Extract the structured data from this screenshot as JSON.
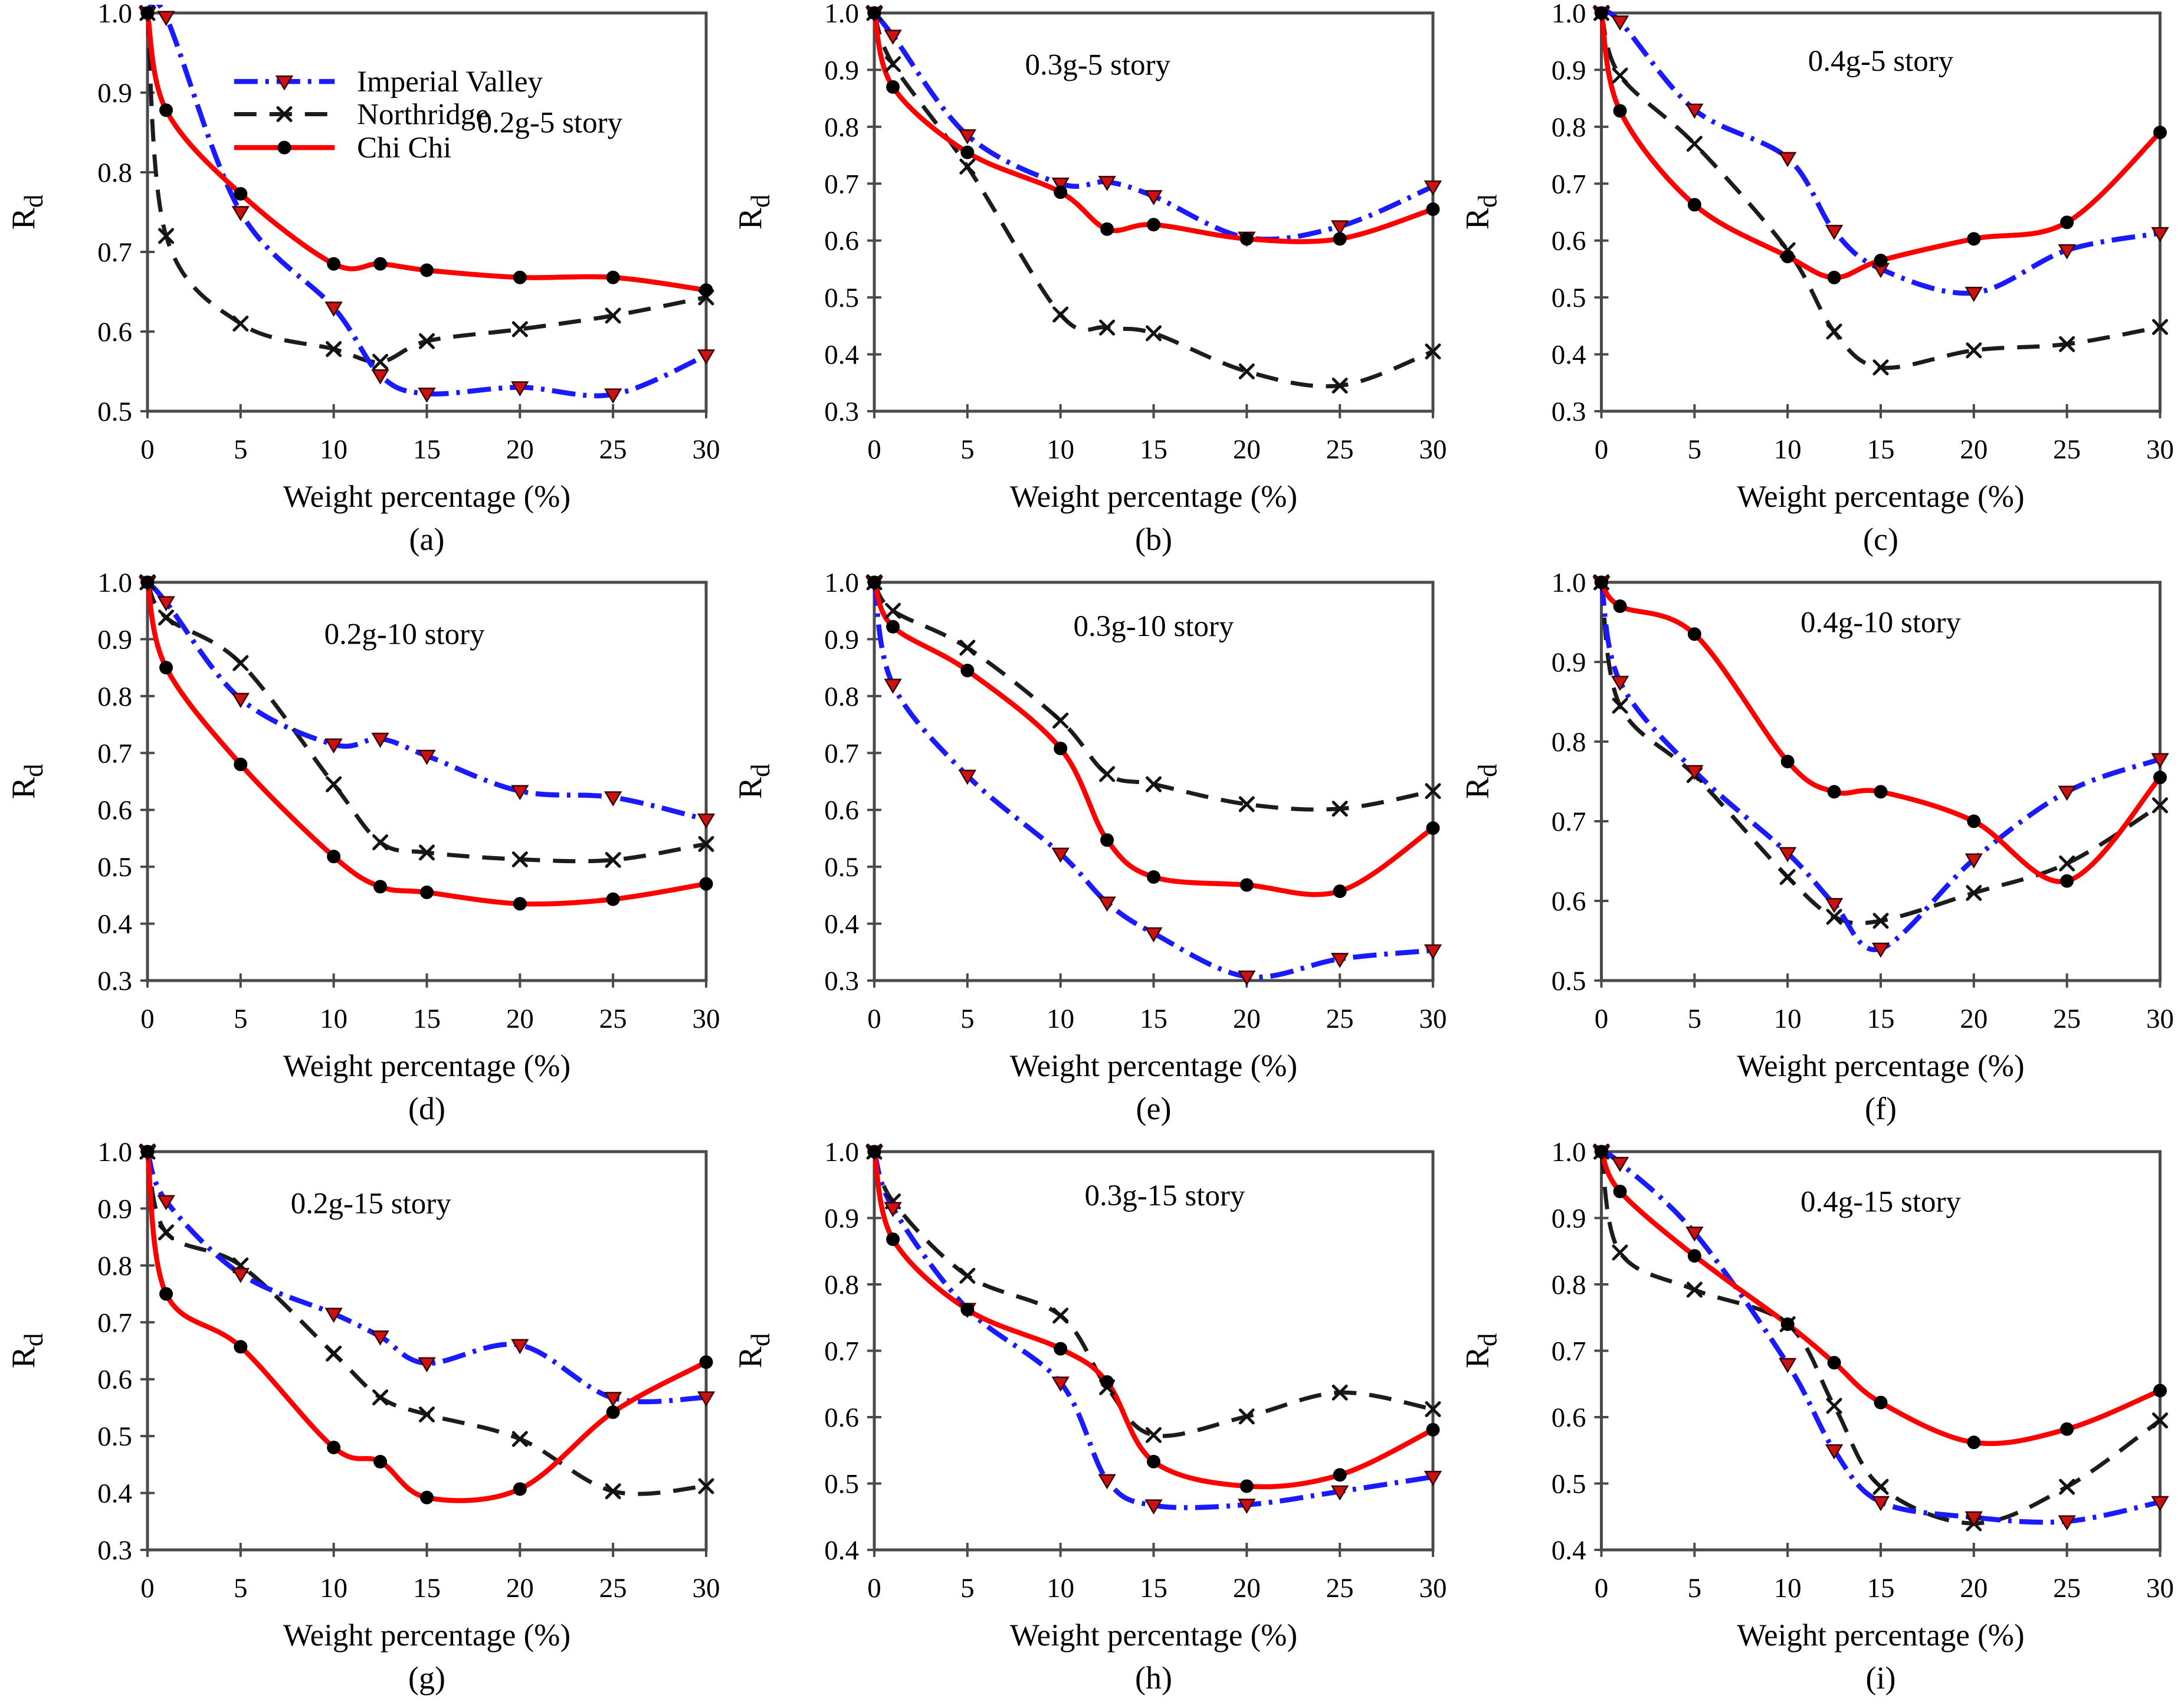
{
  "figure": {
    "xlabel": "Weight percentage (%)",
    "ylabel_main": "R",
    "ylabel_sub": "d",
    "background": "#ffffff",
    "frame_color": "#4a4a4a",
    "text_color": "#000000"
  },
  "legend": {
    "entries": [
      {
        "label": "Imperial Valley"
      },
      {
        "label": "Northridge"
      },
      {
        "label": "Chi Chi"
      }
    ]
  },
  "series_styles": {
    "Imperial Valley": {
      "color": "#1a1aff",
      "dash": "dashdot",
      "marker": "triangle-down",
      "marker_fill": "#cc1111",
      "marker_edge": "#3a0000"
    },
    "Northridge": {
      "color": "#1c1c1c",
      "dash": "dashed",
      "marker": "x-cross",
      "marker_fill": "#111111",
      "marker_edge": "#111111"
    },
    "Chi Chi": {
      "color": "#fe0000",
      "dash": "solid",
      "marker": "circle",
      "marker_fill": "#000000",
      "marker_edge": "#000000"
    }
  },
  "chart_data": [
    {
      "type": "line",
      "label": "(a)",
      "title": "0.2g-5 story",
      "xlabel": "Weight percentage (%)",
      "ylabel": "Rd",
      "x": [
        0,
        1,
        5,
        10,
        12.5,
        15,
        20,
        25,
        30
      ],
      "xticks": [
        0,
        5,
        10,
        15,
        20,
        25,
        30
      ],
      "xlim": [
        0,
        30
      ],
      "ylim": [
        0.5,
        1.0
      ],
      "ytick_step": 0.1,
      "show_legend": true,
      "series": [
        {
          "name": "Imperial Valley",
          "values": [
            1.0,
            0.995,
            0.75,
            0.63,
            0.545,
            0.522,
            0.53,
            0.521,
            0.57
          ]
        },
        {
          "name": "Northridge",
          "values": [
            1.0,
            0.72,
            0.61,
            0.578,
            0.562,
            0.588,
            0.603,
            0.62,
            0.643
          ]
        },
        {
          "name": "Chi Chi",
          "values": [
            1.0,
            0.878,
            0.773,
            0.685,
            0.685,
            0.677,
            0.668,
            0.668,
            0.652
          ]
        }
      ]
    },
    {
      "type": "line",
      "label": "(b)",
      "title": "0.3g-5 story",
      "xlabel": "Weight percentage (%)",
      "ylabel": "Rd",
      "x": [
        0,
        1,
        5,
        10,
        12.5,
        15,
        20,
        25,
        30
      ],
      "xticks": [
        0,
        5,
        10,
        15,
        20,
        25,
        30
      ],
      "xlim": [
        0,
        30
      ],
      "ylim": [
        0.3,
        1.0
      ],
      "ytick_step": 0.1,
      "show_legend": false,
      "series": [
        {
          "name": "Imperial Valley",
          "values": [
            1.0,
            0.96,
            0.785,
            0.7,
            0.703,
            0.678,
            0.605,
            0.625,
            0.695
          ]
        },
        {
          "name": "Northridge",
          "values": [
            1.0,
            0.91,
            0.73,
            0.47,
            0.447,
            0.437,
            0.37,
            0.345,
            0.405
          ]
        },
        {
          "name": "Chi Chi",
          "values": [
            1.0,
            0.87,
            0.755,
            0.685,
            0.62,
            0.628,
            0.603,
            0.603,
            0.655
          ]
        }
      ]
    },
    {
      "type": "line",
      "label": "(c)",
      "title": "0.4g-5 story",
      "xlabel": "Weight percentage (%)",
      "ylabel": "Rd",
      "x": [
        0,
        1,
        5,
        10,
        12.5,
        15,
        20,
        25,
        30
      ],
      "xticks": [
        0,
        5,
        10,
        15,
        20,
        25,
        30
      ],
      "xlim": [
        0,
        30
      ],
      "ylim": [
        0.3,
        1.0
      ],
      "ytick_step": 0.1,
      "show_legend": false,
      "series": [
        {
          "name": "Imperial Valley",
          "values": [
            1.0,
            0.985,
            0.83,
            0.745,
            0.617,
            0.55,
            0.508,
            0.583,
            0.613
          ]
        },
        {
          "name": "Northridge",
          "values": [
            1.0,
            0.89,
            0.77,
            0.583,
            0.44,
            0.377,
            0.407,
            0.418,
            0.448
          ]
        },
        {
          "name": "Chi Chi",
          "values": [
            1.0,
            0.828,
            0.663,
            0.572,
            0.535,
            0.565,
            0.603,
            0.632,
            0.79
          ]
        }
      ]
    },
    {
      "type": "line",
      "label": "(d)",
      "title": "0.2g-10 story",
      "xlabel": "Weight percentage (%)",
      "ylabel": "Rd",
      "x": [
        0,
        1,
        5,
        10,
        12.5,
        15,
        20,
        25,
        30
      ],
      "xticks": [
        0,
        5,
        10,
        15,
        20,
        25,
        30
      ],
      "xlim": [
        0,
        30
      ],
      "ylim": [
        0.3,
        1.0
      ],
      "ytick_step": 0.1,
      "show_legend": false,
      "series": [
        {
          "name": "Imperial Valley",
          "values": [
            1.0,
            0.965,
            0.795,
            0.715,
            0.725,
            0.695,
            0.633,
            0.622,
            0.583
          ]
        },
        {
          "name": "Northridge",
          "values": [
            1.0,
            0.938,
            0.858,
            0.645,
            0.543,
            0.525,
            0.513,
            0.512,
            0.54
          ]
        },
        {
          "name": "Chi Chi",
          "values": [
            1.0,
            0.85,
            0.68,
            0.518,
            0.465,
            0.455,
            0.435,
            0.443,
            0.47
          ]
        }
      ]
    },
    {
      "type": "line",
      "label": "(e)",
      "title": "0.3g-10 story",
      "xlabel": "Weight percentage (%)",
      "ylabel": "Rd",
      "x": [
        0,
        1,
        5,
        10,
        12.5,
        15,
        20,
        25,
        30
      ],
      "xticks": [
        0,
        5,
        10,
        15,
        20,
        25,
        30
      ],
      "xlim": [
        0,
        30
      ],
      "ylim": [
        0.3,
        1.0
      ],
      "ytick_step": 0.1,
      "show_legend": false,
      "series": [
        {
          "name": "Imperial Valley",
          "values": [
            1.0,
            0.82,
            0.66,
            0.523,
            0.437,
            0.383,
            0.307,
            0.338,
            0.353
          ]
        },
        {
          "name": "Northridge",
          "values": [
            1.0,
            0.95,
            0.885,
            0.757,
            0.663,
            0.645,
            0.61,
            0.602,
            0.633
          ]
        },
        {
          "name": "Chi Chi",
          "values": [
            1.0,
            0.922,
            0.845,
            0.708,
            0.547,
            0.482,
            0.468,
            0.457,
            0.568
          ]
        }
      ]
    },
    {
      "type": "line",
      "label": "(f)",
      "title": "0.4g-10 story",
      "xlabel": "Weight percentage (%)",
      "ylabel": "Rd",
      "x": [
        0,
        1,
        5,
        10,
        12.5,
        15,
        20,
        25,
        30
      ],
      "xticks": [
        0,
        5,
        10,
        15,
        20,
        25,
        30
      ],
      "xlim": [
        0,
        30
      ],
      "ylim": [
        0.5,
        1.0
      ],
      "ytick_step": 0.1,
      "show_legend": false,
      "series": [
        {
          "name": "Imperial Valley",
          "values": [
            1.0,
            0.875,
            0.763,
            0.66,
            0.596,
            0.54,
            0.652,
            0.737,
            0.778
          ]
        },
        {
          "name": "Northridge",
          "values": [
            1.0,
            0.845,
            0.758,
            0.63,
            0.58,
            0.575,
            0.61,
            0.647,
            0.72
          ]
        },
        {
          "name": "Chi Chi",
          "values": [
            1.0,
            0.97,
            0.935,
            0.775,
            0.737,
            0.737,
            0.7,
            0.625,
            0.755
          ]
        }
      ]
    },
    {
      "type": "line",
      "label": "(g)",
      "title": "0.2g-15 story",
      "xlabel": "Weight percentage (%)",
      "ylabel": "Rd",
      "x": [
        0,
        1,
        5,
        10,
        12.5,
        15,
        20,
        25,
        30
      ],
      "xticks": [
        0,
        5,
        10,
        15,
        20,
        25,
        30
      ],
      "xlim": [
        0,
        30
      ],
      "ylim": [
        0.3,
        1.0
      ],
      "ytick_step": 0.1,
      "show_legend": false,
      "series": [
        {
          "name": "Imperial Valley",
          "values": [
            1.0,
            0.913,
            0.785,
            0.715,
            0.675,
            0.628,
            0.66,
            0.567,
            0.568
          ]
        },
        {
          "name": "Northridge",
          "values": [
            1.0,
            0.858,
            0.8,
            0.645,
            0.568,
            0.538,
            0.495,
            0.403,
            0.412
          ]
        },
        {
          "name": "Chi Chi",
          "values": [
            1.0,
            0.75,
            0.657,
            0.48,
            0.455,
            0.392,
            0.407,
            0.542,
            0.63
          ]
        }
      ]
    },
    {
      "type": "line",
      "label": "(h)",
      "title": "0.3g-15 story",
      "xlabel": "Weight percentage (%)",
      "ylabel": "Rd",
      "x": [
        0,
        1,
        5,
        10,
        12.5,
        15,
        20,
        25,
        30
      ],
      "xticks": [
        0,
        5,
        10,
        15,
        20,
        25,
        30
      ],
      "xlim": [
        0,
        30
      ],
      "ylim": [
        0.4,
        1.0
      ],
      "ytick_step": 0.1,
      "show_legend": false,
      "series": [
        {
          "name": "Imperial Valley",
          "values": [
            1.0,
            0.915,
            0.763,
            0.652,
            0.505,
            0.467,
            0.468,
            0.488,
            0.51
          ]
        },
        {
          "name": "Northridge",
          "values": [
            1.0,
            0.925,
            0.813,
            0.753,
            0.645,
            0.573,
            0.601,
            0.637,
            0.612
          ]
        },
        {
          "name": "Chi Chi",
          "values": [
            1.0,
            0.868,
            0.762,
            0.703,
            0.653,
            0.533,
            0.496,
            0.513,
            0.581
          ]
        }
      ]
    },
    {
      "type": "line",
      "label": "(i)",
      "title": "0.4g-15 story",
      "xlabel": "Weight percentage (%)",
      "ylabel": "Rd",
      "x": [
        0,
        1,
        5,
        10,
        12.5,
        15,
        20,
        25,
        30
      ],
      "xticks": [
        0,
        5,
        10,
        15,
        20,
        25,
        30
      ],
      "xlim": [
        0,
        30
      ],
      "ylim": [
        0.4,
        1.0
      ],
      "ytick_step": 0.1,
      "show_legend": false,
      "series": [
        {
          "name": "Imperial Valley",
          "values": [
            1.0,
            0.983,
            0.878,
            0.68,
            0.55,
            0.472,
            0.449,
            0.443,
            0.472
          ]
        },
        {
          "name": "Northridge",
          "values": [
            1.0,
            0.848,
            0.792,
            0.74,
            0.617,
            0.495,
            0.44,
            0.495,
            0.595
          ]
        },
        {
          "name": "Chi Chi",
          "values": [
            1.0,
            0.94,
            0.843,
            0.74,
            0.682,
            0.622,
            0.562,
            0.582,
            0.64
          ]
        }
      ]
    }
  ]
}
